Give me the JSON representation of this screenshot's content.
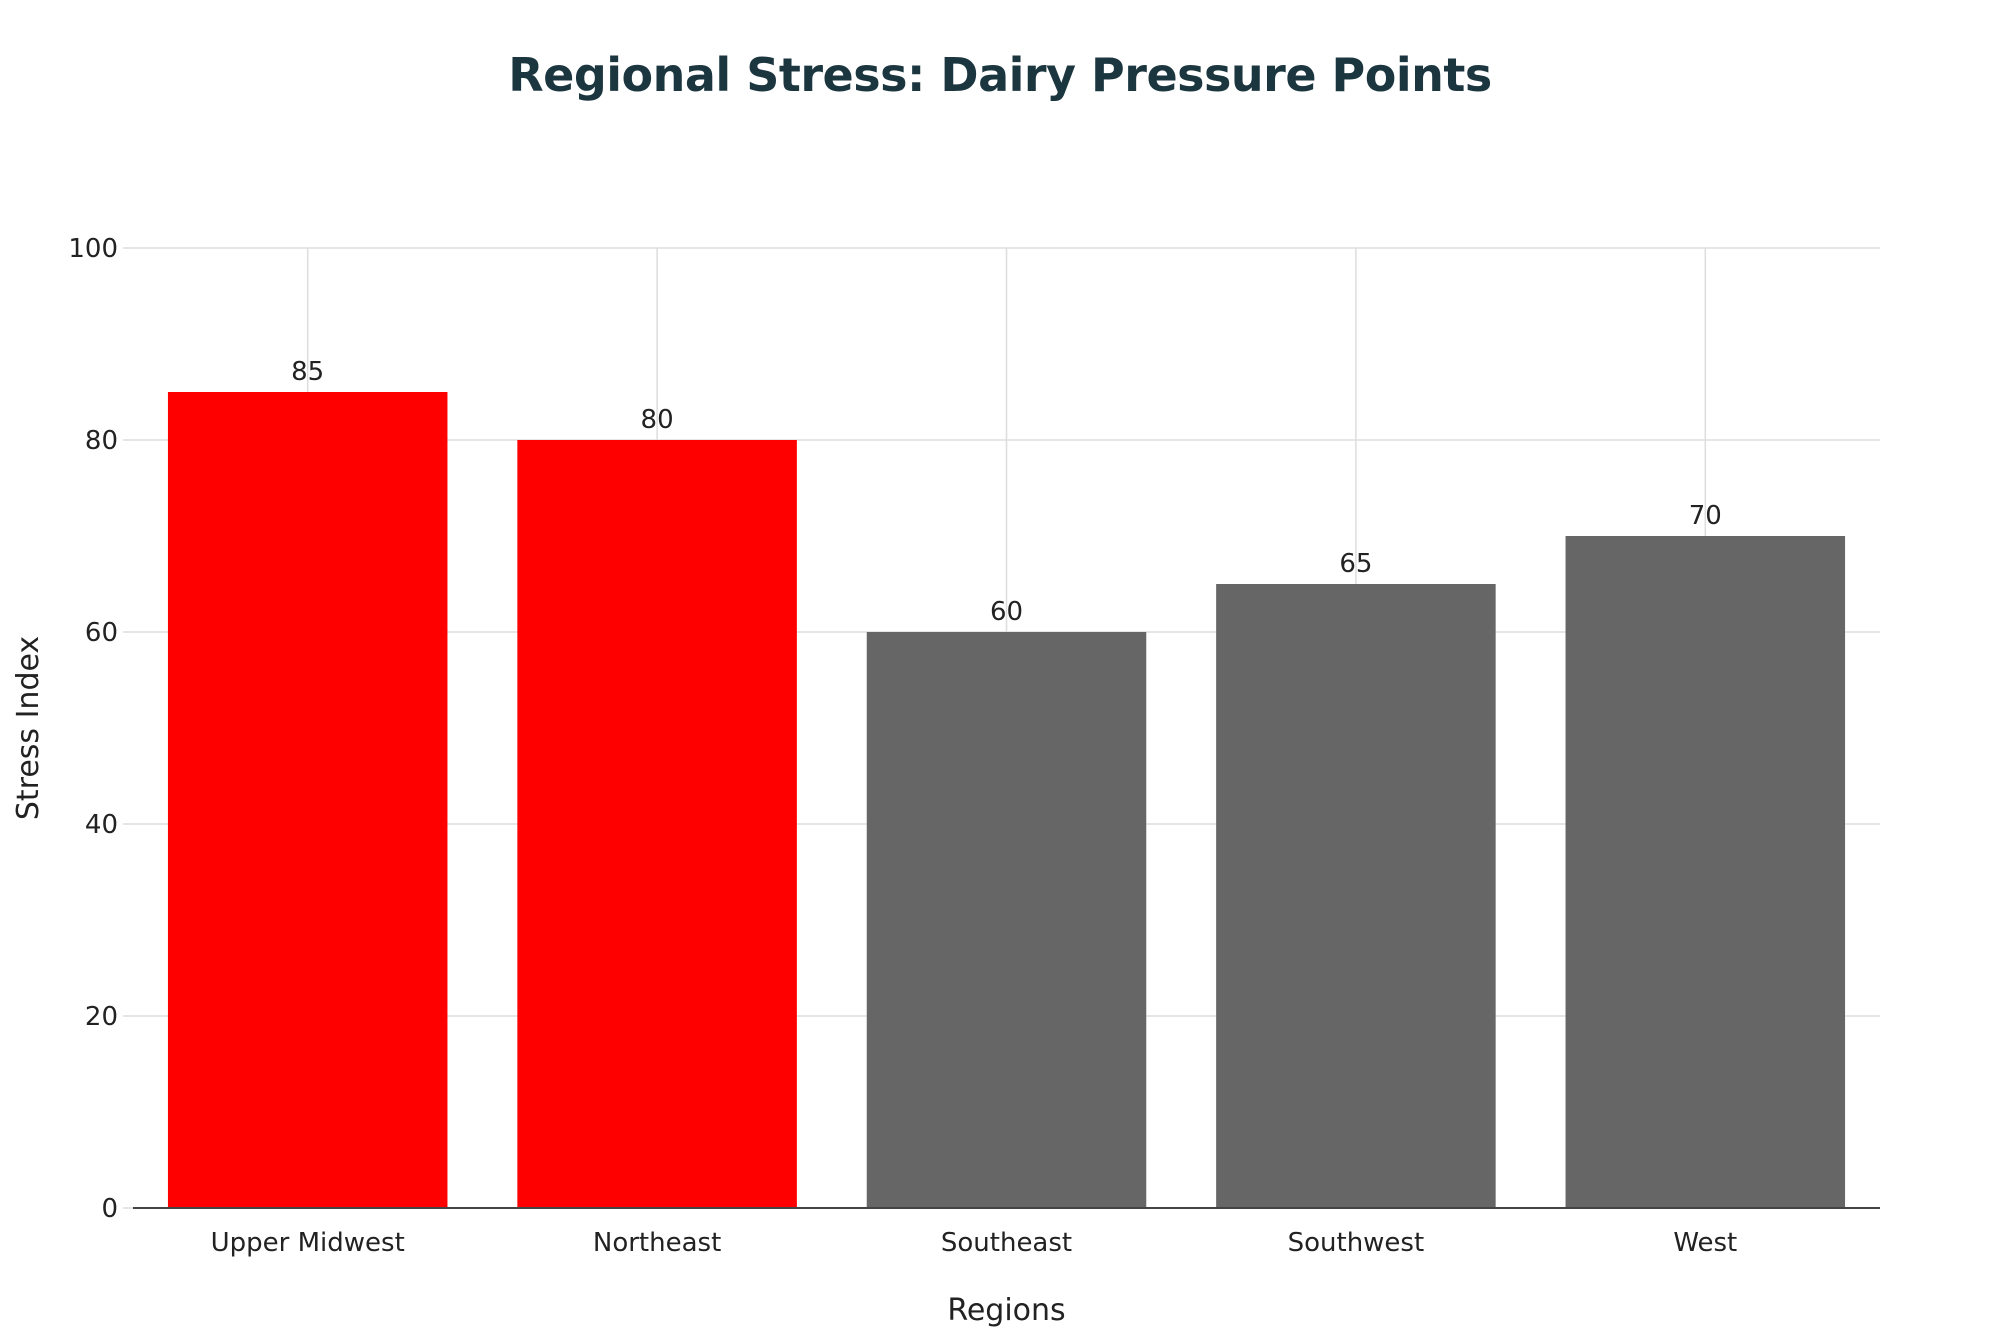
{
  "chart_data": {
    "type": "bar",
    "title": "Regional Stress: Dairy Pressure Points",
    "categories": [
      "Upper Midwest",
      "Northeast",
      "Southeast",
      "Southwest",
      "West"
    ],
    "values": [
      85,
      80,
      60,
      65,
      70
    ],
    "data_labels": [
      "85",
      "80",
      "60",
      "65",
      "70"
    ],
    "bar_colors": [
      "#ff0000",
      "#ff0000",
      "#666666",
      "#666666",
      "#666666"
    ],
    "xlabel": "Regions",
    "ylabel": "Stress Index",
    "ylim": [
      0,
      100
    ],
    "yticks": [
      0,
      20,
      40,
      60,
      80,
      100
    ],
    "ytick_labels": [
      "0",
      "20",
      "40",
      "60",
      "80",
      "100"
    ],
    "grid": true
  },
  "colors": {
    "title": "#1c3640",
    "grid": "#dddddd",
    "axis": "#444444",
    "text": "#222222"
  }
}
